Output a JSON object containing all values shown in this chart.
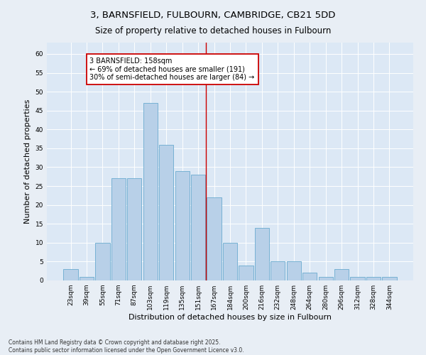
{
  "title": "3, BARNSFIELD, FULBOURN, CAMBRIDGE, CB21 5DD",
  "subtitle": "Size of property relative to detached houses in Fulbourn",
  "xlabel": "Distribution of detached houses by size in Fulbourn",
  "ylabel": "Number of detached properties",
  "footer": "Contains HM Land Registry data © Crown copyright and database right 2025.\nContains public sector information licensed under the Open Government Licence v3.0.",
  "categories": [
    "23sqm",
    "39sqm",
    "55sqm",
    "71sqm",
    "87sqm",
    "103sqm",
    "119sqm",
    "135sqm",
    "151sqm",
    "167sqm",
    "184sqm",
    "200sqm",
    "216sqm",
    "232sqm",
    "248sqm",
    "264sqm",
    "280sqm",
    "296sqm",
    "312sqm",
    "328sqm",
    "344sqm"
  ],
  "values": [
    3,
    1,
    10,
    27,
    27,
    47,
    36,
    29,
    28,
    22,
    10,
    4,
    14,
    5,
    5,
    2,
    1,
    3,
    1,
    1,
    1
  ],
  "bar_color": "#b8d0e8",
  "bar_edge_color": "#6aabcf",
  "vline_x": 8.5,
  "vline_color": "#cc0000",
  "annotation_text": "3 BARNSFIELD: 158sqm\n← 69% of detached houses are smaller (191)\n30% of semi-detached houses are larger (84) →",
  "annotation_box_color": "white",
  "annotation_box_edge_color": "#cc0000",
  "ylim": [
    0,
    63
  ],
  "yticks": [
    0,
    5,
    10,
    15,
    20,
    25,
    30,
    35,
    40,
    45,
    50,
    55,
    60
  ],
  "background_color": "#e8eef5",
  "plot_background": "#dce8f5",
  "grid_color": "#ffffff",
  "title_fontsize": 9.5,
  "subtitle_fontsize": 8.5,
  "axis_label_fontsize": 8,
  "tick_fontsize": 6.5,
  "annotation_fontsize": 7,
  "footer_fontsize": 5.5
}
